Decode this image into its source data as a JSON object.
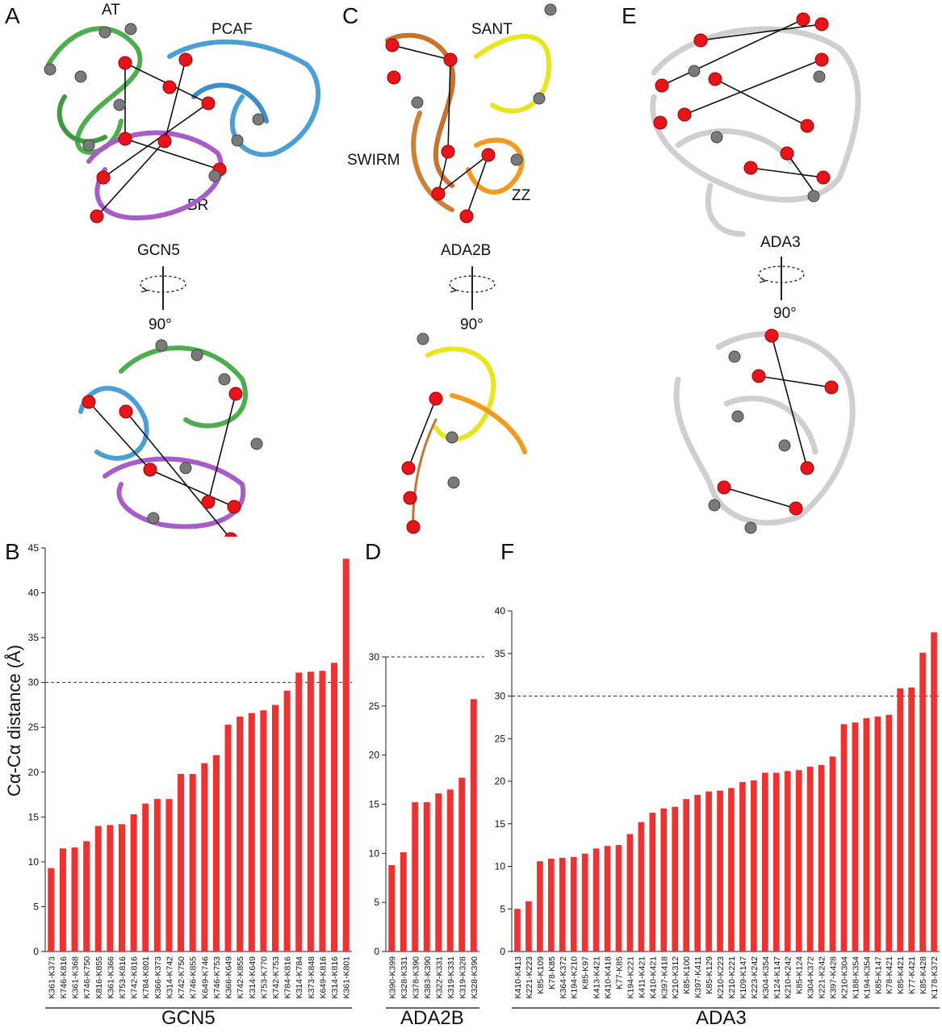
{
  "panels": {
    "A": "A",
    "B": "B",
    "C": "C",
    "D": "D",
    "E": "E",
    "F": "F"
  },
  "structures": {
    "gcn5": {
      "domains": [
        "AT",
        "PCAF",
        "BR"
      ],
      "name": "GCN5",
      "rotation": "90°"
    },
    "ada2b": {
      "domains": [
        "SANT",
        "SWIRM",
        "ZZ"
      ],
      "name": "ADA2B",
      "rotation": "90°"
    },
    "ada3": {
      "name": "ADA3",
      "rotation": "90°"
    }
  },
  "colors": {
    "bar": "#f23030",
    "crosslink_sphere": "#e8141a",
    "noncrosslink_sphere": "#7a7a7a",
    "at_domain": "#4cae4c",
    "pcaf_domain": "#4a9fd8",
    "br_domain": "#a85cc8",
    "sant_domain": "#e6e61a",
    "swirm_domain": "#c8722a",
    "zz_domain": "#f59a1a",
    "ada3_ribbon": "#d8d8d8"
  },
  "chart_data": [
    {
      "type": "bar",
      "panel": "B",
      "xlabel": "GCN5",
      "ylabel": "Cα-Cα distance (Å)",
      "ylim": [
        0,
        45
      ],
      "yticks": [
        0,
        5,
        10,
        15,
        20,
        25,
        30,
        35,
        40,
        45
      ],
      "reference_line": 30,
      "categories": [
        "K361-K373",
        "K746-K816",
        "K361-K368",
        "K746-K750",
        "K816-K855",
        "K361-K366",
        "K753-K816",
        "K742-K816",
        "K784-K801",
        "K366-K373",
        "K314-K742",
        "K742-K750",
        "K746-K855",
        "K649-K746",
        "K746-K753",
        "K366-K649",
        "K742-K855",
        "K314-K649",
        "K753-K770",
        "K742-K753",
        "K784-K816",
        "K314-K784",
        "K373-K848",
        "K649-K816",
        "K314-K816",
        "K361-K801"
      ],
      "values": [
        9.3,
        11.5,
        11.6,
        12.3,
        14.0,
        14.1,
        14.2,
        15.3,
        16.5,
        17.0,
        17.0,
        19.8,
        19.8,
        21.0,
        21.9,
        25.3,
        26.2,
        26.6,
        26.9,
        27.5,
        29.1,
        31.1,
        31.2,
        31.3,
        32.2,
        43.8
      ]
    },
    {
      "type": "bar",
      "panel": "D",
      "xlabel": "ADA2B",
      "ylim": [
        0,
        30
      ],
      "yticks": [
        0,
        5,
        10,
        15,
        20,
        25,
        30
      ],
      "reference_line": 30,
      "categories": [
        "K390-K399",
        "K328-K331",
        "K378-K390",
        "K383-K390",
        "K322-K331",
        "K319-K331",
        "K319-K328",
        "K328-K390"
      ],
      "values": [
        8.8,
        10.1,
        15.2,
        15.2,
        16.1,
        16.5,
        17.7,
        25.7
      ]
    },
    {
      "type": "bar",
      "panel": "F",
      "xlabel": "ADA3",
      "ylim": [
        0,
        40
      ],
      "yticks": [
        0,
        5,
        10,
        15,
        20,
        25,
        30,
        35,
        40
      ],
      "reference_line": 30,
      "categories": [
        "K410-K413",
        "K221-K223",
        "K85-K109",
        "K78-K85",
        "K364-K372",
        "K194-K210",
        "K85-K97",
        "K413-K421",
        "K410-K418",
        "K77-K85",
        "K194-K221",
        "K411-K421",
        "K410-K421",
        "K397-K418",
        "K210-K312",
        "K85-K100",
        "K397-K411",
        "K85-K129",
        "K210-K223",
        "K210-K221",
        "K109-K147",
        "K223-K242",
        "K304-K354",
        "K124-K147",
        "K210-K242",
        "K85-K124",
        "K304-K372",
        "K221-K242",
        "K397-K428",
        "K210-K304",
        "K188-K354",
        "K194-K354",
        "K85-K147",
        "K78-K421",
        "K85-K421",
        "K77-K421",
        "K85-K428",
        "K178-K372"
      ],
      "values": [
        5.0,
        5.9,
        10.6,
        10.9,
        11.0,
        11.1,
        11.5,
        12.1,
        12.4,
        12.5,
        13.8,
        15.2,
        16.3,
        16.8,
        17.0,
        17.9,
        18.4,
        18.8,
        18.9,
        19.2,
        19.9,
        20.1,
        21.0,
        21.0,
        21.2,
        21.3,
        21.7,
        21.9,
        22.9,
        26.7,
        26.9,
        27.4,
        27.6,
        27.8,
        30.9,
        31.0,
        35.1,
        37.5
      ]
    }
  ]
}
